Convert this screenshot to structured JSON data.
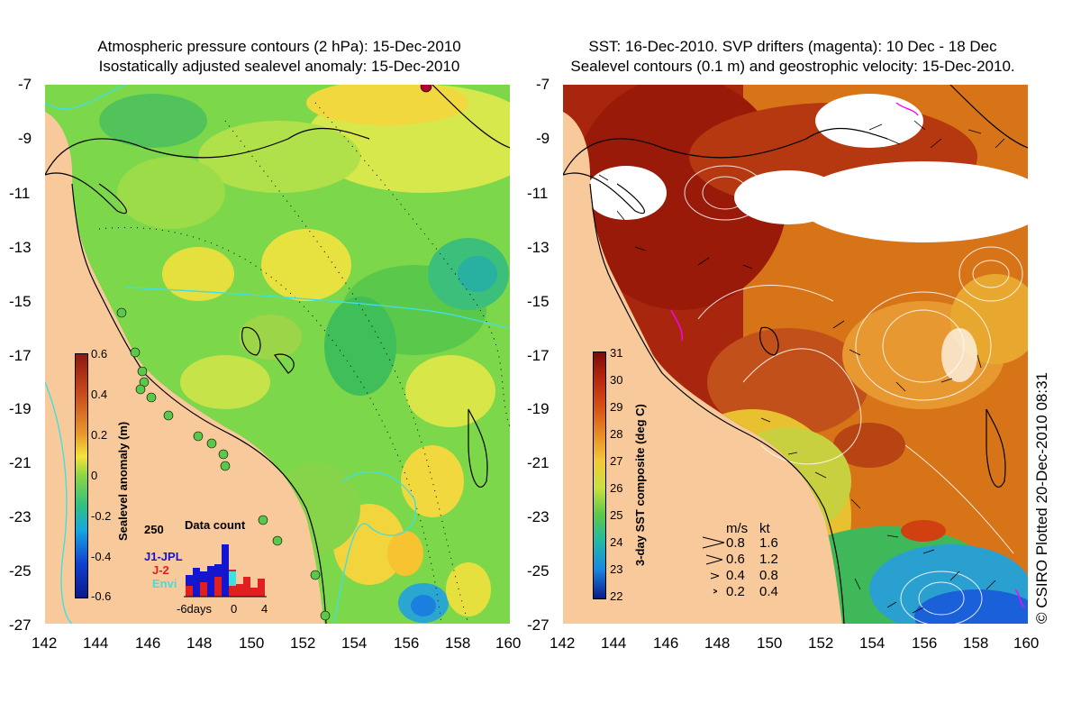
{
  "left": {
    "title_line1": "Atmospheric pressure contours (2 hPa): 15-Dec-2010",
    "title_line2": "Isostatically adjusted sealevel anomaly: 15-Dec-2010",
    "colorbar_label": "Sealevel anomaly (m)",
    "colorbar_ticks": [
      "0.6",
      "0.4",
      "0.2",
      "0",
      "-0.2",
      "-0.4",
      "-0.6"
    ],
    "inset": {
      "count_label": "250",
      "title": "Data count",
      "legend": [
        "J1-JPL",
        "J-2",
        "Envi"
      ],
      "xlabels": [
        "-6days",
        "0",
        "4"
      ]
    }
  },
  "right": {
    "title_line1": "SST: 16-Dec-2010. SVP drifters (magenta): 10 Dec - 18 Dec",
    "title_line2": "Sealevel contours (0.1 m) and geostrophic velocity: 15-Dec-2010.",
    "colorbar_label": "3-day SST composite (deg C)",
    "colorbar_ticks": [
      "31",
      "30",
      "29",
      "28",
      "27",
      "26",
      "25",
      "24",
      "23",
      "22"
    ],
    "velocity_legend": {
      "header_ms": "m/s",
      "header_kt": "kt",
      "rows": [
        {
          "ms": "0.8",
          "kt": "1.6"
        },
        {
          "ms": "0.6",
          "kt": "1.2"
        },
        {
          "ms": "0.4",
          "kt": "0.8"
        },
        {
          "ms": "0.2",
          "kt": "0.4"
        }
      ]
    }
  },
  "axes": {
    "lat_ticks": [
      "-7",
      "-9",
      "-11",
      "-13",
      "-15",
      "-17",
      "-19",
      "-21",
      "-23",
      "-25",
      "-27"
    ],
    "lon_ticks": [
      "142",
      "144",
      "146",
      "148",
      "150",
      "152",
      "154",
      "156",
      "158",
      "160"
    ]
  },
  "credit": "© CSIRO Plotted 20-Dec-2010 08:31",
  "colors": {
    "land": "#f8c99b",
    "coast": "#000000",
    "isobath": "#40e0e0",
    "drifter": "#ff00ff"
  }
}
